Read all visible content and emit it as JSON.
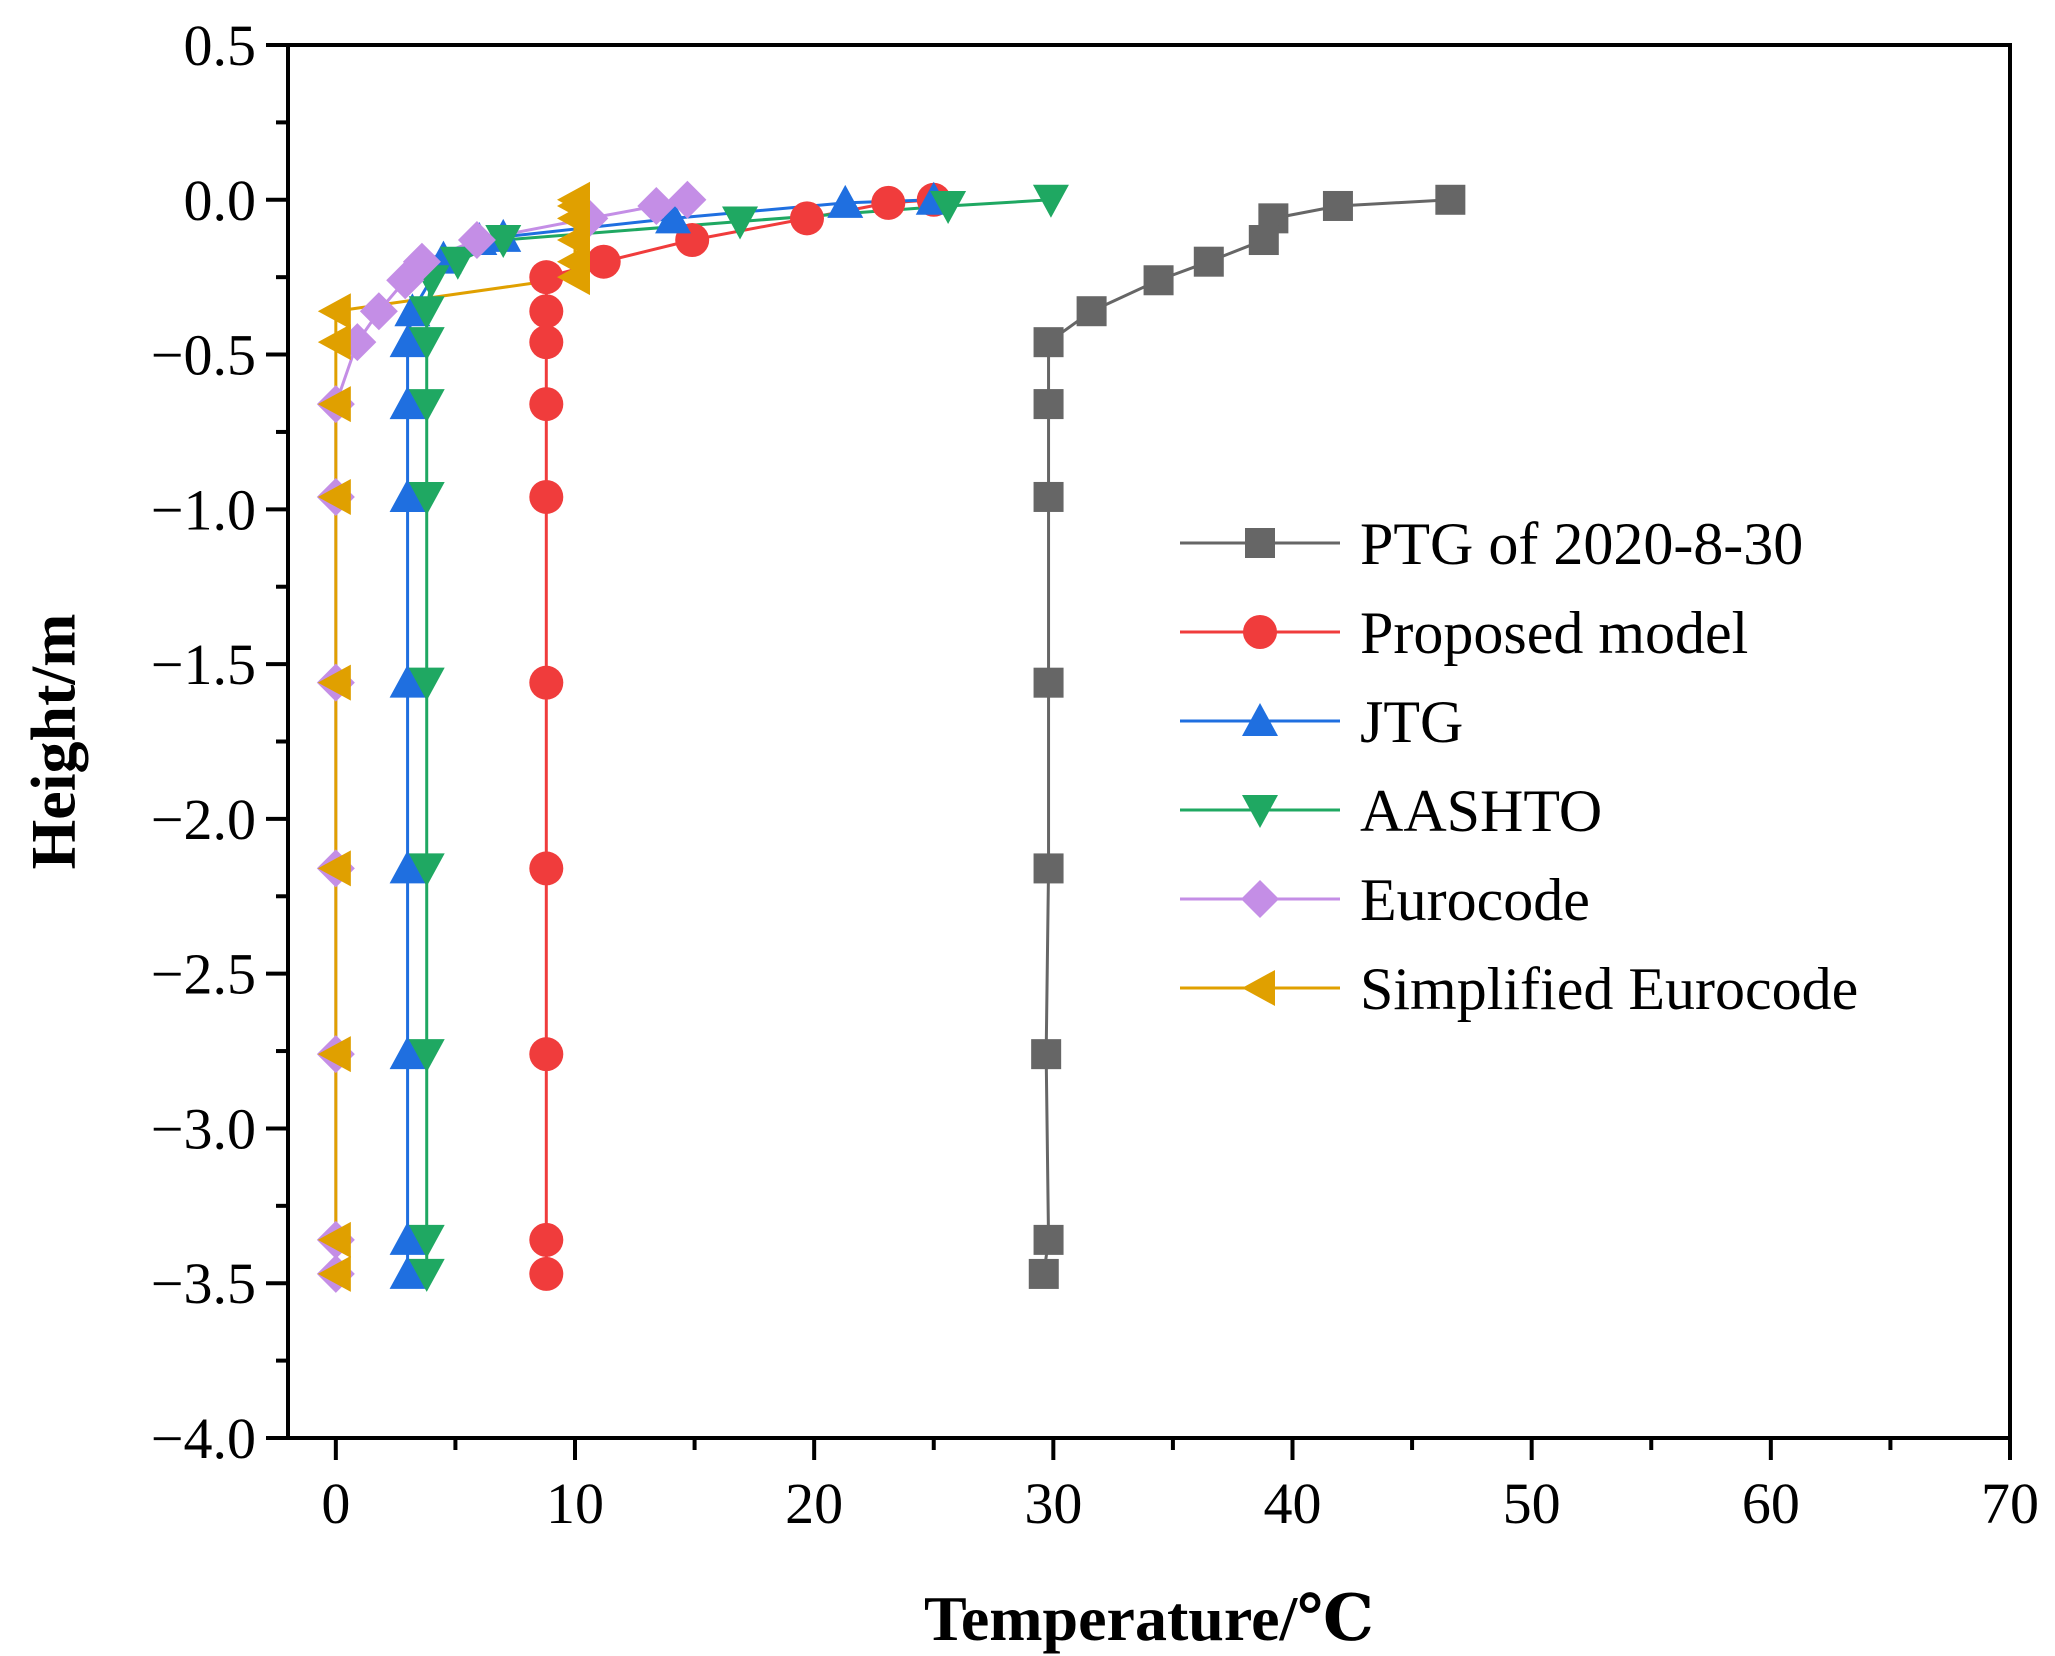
{
  "chart_data": {
    "type": "line",
    "title": "",
    "xlabel": "Temperature/℃",
    "ylabel": "Height/m",
    "xlim": [
      -2,
      70
    ],
    "ylim": [
      -4.0,
      0.5
    ],
    "xticks": [
      0,
      10,
      20,
      30,
      40,
      50,
      60,
      70
    ],
    "xtick_labels": [
      "0",
      "10",
      "20",
      "30",
      "40",
      "50",
      "60",
      "70"
    ],
    "yticks": [
      0.5,
      0.0,
      -0.5,
      -1.0,
      -1.5,
      -2.0,
      -2.5,
      -3.0,
      -3.5,
      -4.0
    ],
    "ytick_labels": [
      "0.5",
      "0.0",
      "−0.5",
      "−1.0",
      "−1.5",
      "−2.0",
      "−2.5",
      "−3.0",
      "−3.5",
      "−4.0"
    ],
    "grid": false,
    "legend_position": "right",
    "series": [
      {
        "name": "PTG of 2020-8-30",
        "color": "#666666",
        "marker": "square",
        "x": [
          46.6,
          41.9,
          39.2,
          38.8,
          36.5,
          34.4,
          31.6,
          29.8,
          29.8,
          29.8,
          29.8,
          29.8,
          29.7,
          29.8,
          29.6
        ],
        "y": [
          0.0,
          -0.02,
          -0.06,
          -0.13,
          -0.2,
          -0.26,
          -0.36,
          -0.46,
          -0.66,
          -0.96,
          -1.56,
          -2.16,
          -2.76,
          -3.36,
          -3.47
        ]
      },
      {
        "name": "Proposed model",
        "color": "#f03c3c",
        "marker": "circle",
        "x": [
          25.0,
          23.1,
          19.7,
          14.9,
          11.2,
          8.8,
          8.8,
          8.8,
          8.8,
          8.8,
          8.8,
          8.8,
          8.8,
          8.8,
          8.8
        ],
        "y": [
          0.0,
          -0.01,
          -0.06,
          -0.13,
          -0.2,
          -0.25,
          -0.36,
          -0.46,
          -0.66,
          -0.96,
          -1.56,
          -2.16,
          -2.76,
          -3.36,
          -3.47
        ]
      },
      {
        "name": "JTG",
        "color": "#1f6fe0",
        "marker": "triangle-up",
        "x": [
          25.0,
          21.3,
          14.1,
          7.0,
          6.0,
          4.5,
          3.2,
          3.0,
          3.0,
          3.0,
          3.0,
          3.0,
          3.0,
          3.0,
          3.0
        ],
        "y": [
          0.0,
          -0.01,
          -0.06,
          -0.12,
          -0.13,
          -0.19,
          -0.36,
          -0.46,
          -0.66,
          -0.96,
          -1.56,
          -2.16,
          -2.76,
          -3.36,
          -3.47
        ]
      },
      {
        "name": "AASHTO",
        "color": "#1fa862",
        "marker": "triangle-down",
        "x": [
          29.9,
          25.6,
          16.9,
          7.0,
          5.1,
          4.0,
          3.8,
          3.8,
          3.8,
          3.8,
          3.8,
          3.8,
          3.8,
          3.8,
          3.8
        ],
        "y": [
          0.0,
          -0.02,
          -0.07,
          -0.13,
          -0.2,
          -0.26,
          -0.36,
          -0.46,
          -0.66,
          -0.96,
          -1.56,
          -2.16,
          -2.76,
          -3.36,
          -3.47
        ]
      },
      {
        "name": "Eurocode",
        "color": "#c48ee6",
        "marker": "diamond",
        "x": [
          14.7,
          13.4,
          10.6,
          5.9,
          3.6,
          2.9,
          1.8,
          0.9,
          0.0,
          0.0,
          0.0,
          0.0,
          0.0,
          0.0,
          0.0
        ],
        "y": [
          0.0,
          -0.02,
          -0.06,
          -0.13,
          -0.2,
          -0.26,
          -0.36,
          -0.46,
          -0.66,
          -0.96,
          -1.56,
          -2.16,
          -2.76,
          -3.36,
          -3.47
        ]
      },
      {
        "name": "Simplified Eurocode",
        "color": "#e0a000",
        "marker": "triangle-left",
        "x": [
          10.0,
          10.0,
          10.0,
          10.0,
          10.0,
          10.0,
          0.0,
          0.0,
          0.0,
          0.0,
          0.0,
          0.0,
          0.0,
          0.0,
          0.0
        ],
        "y": [
          0.0,
          -0.02,
          -0.06,
          -0.13,
          -0.2,
          -0.25,
          -0.36,
          -0.46,
          -0.66,
          -0.96,
          -1.56,
          -2.16,
          -2.76,
          -3.36,
          -3.47
        ]
      }
    ]
  }
}
